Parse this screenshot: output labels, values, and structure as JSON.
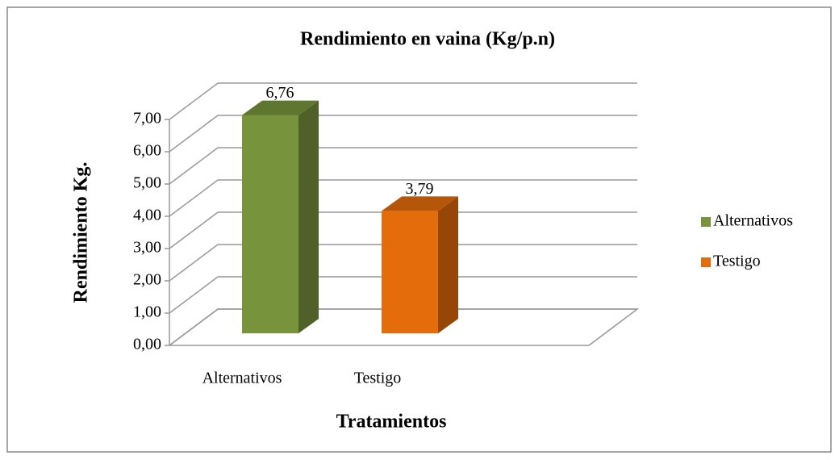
{
  "chart_data": {
    "type": "bar3d",
    "title": "Rendimiento en vaina (Kg/p.n)",
    "x_label": "Tratamientos",
    "y_label": "Rendimiento Kg.",
    "categories": [
      "Alternativos",
      "Testigo"
    ],
    "series": [
      {
        "name": "Alternativos",
        "color": "#77933c",
        "values": [
          6.76,
          null
        ],
        "value_labels": [
          "6,76",
          null
        ]
      },
      {
        "name": "Testigo",
        "color": "#e46c0a",
        "values": [
          null,
          3.79
        ],
        "value_labels": [
          null,
          "3,79"
        ]
      }
    ],
    "ylim": [
      0,
      7
    ],
    "yticks": [
      {
        "value": 0,
        "label": "0,00"
      },
      {
        "value": 1,
        "label": "1,00"
      },
      {
        "value": 2,
        "label": "2,00"
      },
      {
        "value": 3,
        "label": "3,00"
      },
      {
        "value": 4,
        "label": "4,00"
      },
      {
        "value": 5,
        "label": "5,00"
      },
      {
        "value": 6,
        "label": "6,00"
      },
      {
        "value": 7,
        "label": "7,00"
      }
    ],
    "grid": true,
    "legend": "right"
  }
}
